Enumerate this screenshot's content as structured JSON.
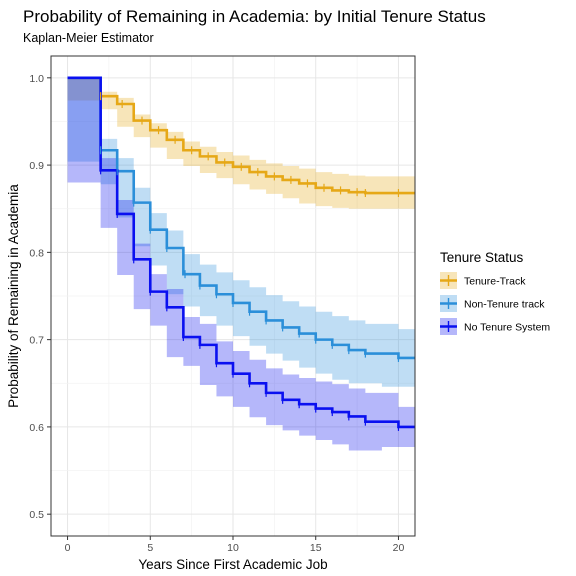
{
  "chart_data": {
    "type": "line",
    "title": "Probability of Remaining in Academia: by Initial Tenure Status",
    "subtitle": "Kaplan-Meier Estimator",
    "xlabel": "Years Since First Academic Job",
    "ylabel": "Probability of Remaining in Academia",
    "xlim": [
      -1,
      21
    ],
    "ylim": [
      0.475,
      1.025
    ],
    "x_ticks": [
      0,
      5,
      10,
      15,
      20
    ],
    "x_tick_labels": [
      "0",
      "5",
      "10",
      "15",
      "20"
    ],
    "y_ticks": [
      0.5,
      0.6,
      0.7,
      0.8,
      0.9,
      1.0
    ],
    "y_tick_labels": [
      "0.5",
      "0.6",
      "0.7",
      "0.8",
      "0.9",
      "1.0"
    ],
    "grid": true,
    "legend": {
      "title": "Tenure Status",
      "placement": "right"
    },
    "series": [
      {
        "name": "Tenure-Track",
        "color": "#E6A817",
        "x": [
          0,
          2,
          3,
          4,
          5,
          6,
          7,
          8,
          9,
          10,
          11,
          12,
          13,
          14,
          15,
          16,
          17,
          18,
          19,
          20,
          21
        ],
        "y": [
          1.0,
          0.979,
          0.97,
          0.951,
          0.94,
          0.929,
          0.917,
          0.91,
          0.903,
          0.898,
          0.892,
          0.887,
          0.883,
          0.879,
          0.874,
          0.871,
          0.869,
          0.868,
          0.868,
          0.868,
          0.868
        ],
        "lower": [
          1.0,
          0.974,
          0.964,
          0.944,
          0.932,
          0.92,
          0.907,
          0.899,
          0.891,
          0.885,
          0.878,
          0.872,
          0.867,
          0.862,
          0.856,
          0.853,
          0.851,
          0.85,
          0.85,
          0.85,
          0.85
        ],
        "upper": [
          1.0,
          0.984,
          0.977,
          0.958,
          0.948,
          0.938,
          0.927,
          0.921,
          0.915,
          0.911,
          0.906,
          0.902,
          0.899,
          0.896,
          0.892,
          0.89,
          0.888,
          0.887,
          0.887,
          0.887,
          0.887
        ],
        "censor_x": [
          2,
          3.3,
          4.5,
          5.5,
          6.5,
          7.5,
          8.5,
          9.5,
          10.5,
          11.5,
          12.5,
          13.5,
          14.5,
          15.5,
          16.5,
          17.5,
          18,
          20
        ]
      },
      {
        "name": "Non-Tenure track",
        "color": "#2B8FD9",
        "x": [
          0,
          2,
          3,
          4,
          5,
          6,
          7,
          8,
          9,
          10,
          11,
          12,
          13,
          14,
          15,
          16,
          17,
          18,
          19,
          20,
          21
        ],
        "y": [
          1.0,
          0.917,
          0.893,
          0.857,
          0.826,
          0.805,
          0.775,
          0.762,
          0.752,
          0.742,
          0.732,
          0.722,
          0.714,
          0.707,
          0.7,
          0.694,
          0.688,
          0.684,
          0.684,
          0.679,
          0.679
        ],
        "lower": [
          1.0,
          0.904,
          0.878,
          0.84,
          0.807,
          0.785,
          0.752,
          0.738,
          0.727,
          0.716,
          0.704,
          0.693,
          0.684,
          0.676,
          0.668,
          0.661,
          0.654,
          0.65,
          0.65,
          0.646,
          0.646
        ],
        "upper": [
          1.0,
          0.93,
          0.908,
          0.874,
          0.845,
          0.825,
          0.798,
          0.786,
          0.777,
          0.768,
          0.76,
          0.751,
          0.744,
          0.738,
          0.732,
          0.727,
          0.722,
          0.718,
          0.718,
          0.712,
          0.712
        ],
        "censor_x": [
          2,
          3,
          4,
          5,
          6,
          7.1,
          8,
          9,
          10,
          11,
          12,
          13,
          14,
          15,
          16,
          17,
          18,
          20
        ]
      },
      {
        "name": "No Tenure System",
        "color": "#0A10F0",
        "x": [
          0,
          2,
          3,
          4,
          5,
          6,
          7,
          8,
          9,
          10,
          11,
          12,
          13,
          14,
          15,
          16,
          17,
          18,
          19,
          20,
          21
        ],
        "y": [
          1.0,
          0.894,
          0.844,
          0.792,
          0.755,
          0.737,
          0.703,
          0.694,
          0.673,
          0.661,
          0.65,
          0.639,
          0.631,
          0.626,
          0.621,
          0.617,
          0.612,
          0.606,
          0.606,
          0.6,
          0.6
        ],
        "lower": [
          1.0,
          0.88,
          0.828,
          0.774,
          0.735,
          0.716,
          0.68,
          0.67,
          0.648,
          0.635,
          0.623,
          0.611,
          0.602,
          0.596,
          0.59,
          0.585,
          0.58,
          0.573,
          0.573,
          0.577,
          0.577
        ],
        "upper": [
          1.0,
          0.908,
          0.86,
          0.81,
          0.775,
          0.758,
          0.726,
          0.718,
          0.698,
          0.687,
          0.677,
          0.667,
          0.66,
          0.656,
          0.652,
          0.649,
          0.644,
          0.639,
          0.639,
          0.623,
          0.623
        ],
        "censor_x": [
          2,
          3,
          4,
          5,
          6,
          7,
          8,
          9,
          10,
          11,
          12,
          13,
          14,
          15,
          16,
          17,
          18,
          20
        ]
      }
    ]
  }
}
